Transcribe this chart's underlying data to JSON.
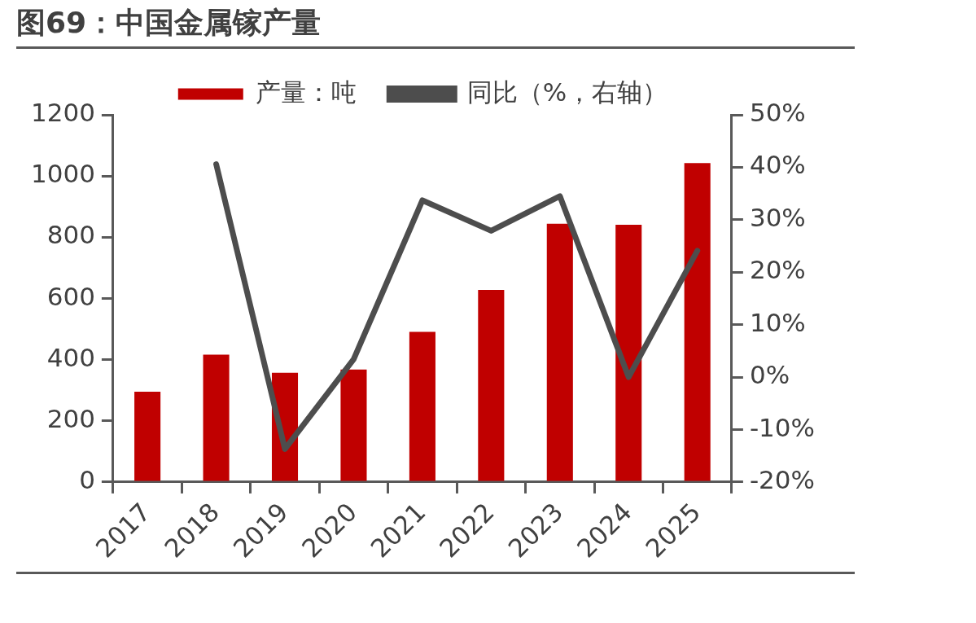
{
  "chart_data": {
    "type": "bar",
    "title": "图69：中国金属镓产量",
    "categories": [
      "2017",
      "2018",
      "2019",
      "2020",
      "2021",
      "2022",
      "2023",
      "2024",
      "2025"
    ],
    "series": [
      {
        "name": "产量：吨",
        "color": "#c00000",
        "values": [
          295,
          416,
          357,
          368,
          491,
          628,
          844,
          841,
          1042
        ]
      },
      {
        "name": "同比（%，右轴）",
        "type": "line",
        "axis": "y2",
        "color": "#4d4d4d",
        "values": [
          null,
          40.6,
          -13.7,
          3.4,
          33.7,
          27.9,
          34.5,
          0,
          24.1
        ]
      }
    ],
    "ylim": [
      0,
      1200
    ],
    "yticks": [
      0,
      200,
      400,
      600,
      800,
      1000,
      1200
    ],
    "y2lim": [
      -20,
      50
    ],
    "y2ticks": [
      {
        "value": -20,
        "label": "-20%"
      },
      {
        "value": -10,
        "label": "-10%"
      },
      {
        "value": 0,
        "label": "0%"
      },
      {
        "value": 10,
        "label": "10%"
      },
      {
        "value": 20,
        "label": "20%"
      },
      {
        "value": 30,
        "label": "30%"
      },
      {
        "value": 40,
        "label": "40%"
      },
      {
        "value": 50,
        "label": "50%"
      }
    ],
    "grid": false,
    "legend": "top",
    "marker": "none",
    "line_style": "solid"
  }
}
